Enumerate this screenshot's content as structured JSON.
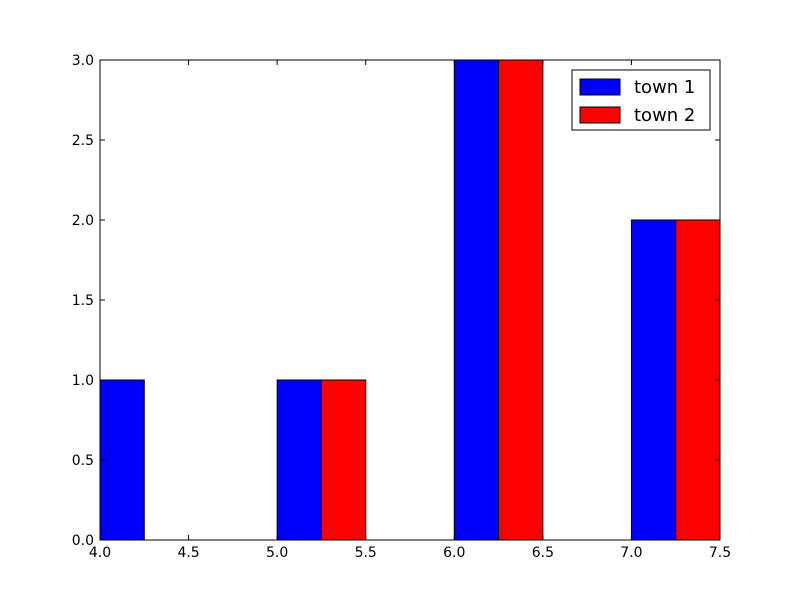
{
  "chart_data": {
    "type": "bar",
    "title": "",
    "xlabel": "",
    "ylabel": "",
    "xlim": [
      4.0,
      7.5
    ],
    "ylim": [
      0.0,
      3.0
    ],
    "xticks": [
      "4.0",
      "4.5",
      "5.0",
      "5.5",
      "6.0",
      "6.5",
      "7.0",
      "7.5"
    ],
    "yticks": [
      "0.0",
      "0.5",
      "1.0",
      "1.5",
      "2.0",
      "2.5",
      "3.0"
    ],
    "grid": false,
    "legend_position": "top-right",
    "bar_width": 0.25,
    "series": [
      {
        "name": "town 1",
        "color": "#0000ff",
        "points": [
          {
            "x": 4.0,
            "y": 1
          },
          {
            "x": 5.0,
            "y": 1
          },
          {
            "x": 6.0,
            "y": 3
          },
          {
            "x": 7.0,
            "y": 2
          }
        ]
      },
      {
        "name": "town 2",
        "color": "#ff0000",
        "points": [
          {
            "x": 5.25,
            "y": 1
          },
          {
            "x": 6.25,
            "y": 3
          },
          {
            "x": 7.25,
            "y": 2
          }
        ]
      }
    ]
  }
}
